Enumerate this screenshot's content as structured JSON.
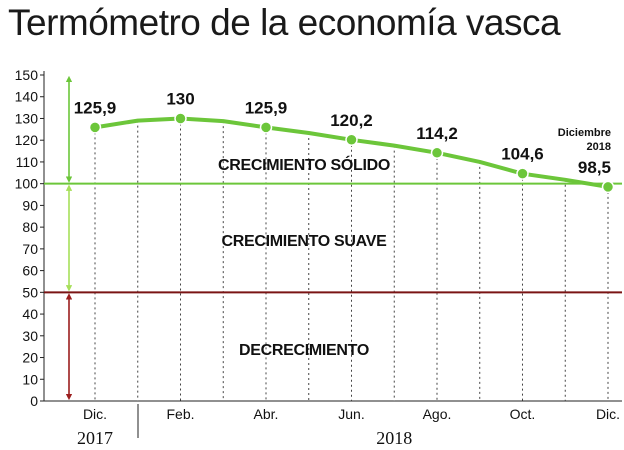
{
  "chart_data": {
    "type": "line",
    "title": "Termómetro de la economía vasca",
    "categories": [
      "Dic.",
      "Feb.",
      "Abr.",
      "Jun.",
      "Ago.",
      "Oct.",
      "Dic."
    ],
    "years": [
      {
        "label": "2017",
        "from": 0,
        "to": 0
      },
      {
        "label": "2018",
        "from": 1,
        "to": 6
      }
    ],
    "series": [
      {
        "values": [
          125.9,
          130,
          125.9,
          120.2,
          114.2,
          104.6,
          98.5
        ],
        "labels": [
          "125,9",
          "130",
          "125,9",
          "120,2",
          "114,2",
          "104,6",
          "98,5"
        ],
        "color": "#6cc63a"
      }
    ],
    "line_path": [
      {
        "x": 0,
        "y": 125.9
      },
      {
        "x": 0.5,
        "y": 129
      },
      {
        "x": 1,
        "y": 130
      },
      {
        "x": 1.5,
        "y": 128.8
      },
      {
        "x": 2,
        "y": 125.9
      },
      {
        "x": 2.5,
        "y": 123.3
      },
      {
        "x": 3,
        "y": 120.2
      },
      {
        "x": 3.5,
        "y": 117.5
      },
      {
        "x": 4,
        "y": 114.2
      },
      {
        "x": 4.5,
        "y": 110
      },
      {
        "x": 5,
        "y": 104.6
      },
      {
        "x": 5.5,
        "y": 101.8
      },
      {
        "x": 6,
        "y": 98.5
      }
    ],
    "ylim": [
      0,
      150
    ],
    "yticks": [
      0,
      10,
      20,
      30,
      40,
      50,
      60,
      70,
      80,
      90,
      100,
      110,
      120,
      130,
      140,
      150
    ],
    "reference_lines": [
      {
        "value": 100,
        "color": "#6cc63a"
      },
      {
        "value": 50,
        "color": "#7a1414"
      }
    ],
    "zones": [
      {
        "label": "CRECIMIENTO SÓLIDO",
        "from": 100,
        "to": 150,
        "label_at": 109,
        "arrow_color": "#6cc63a"
      },
      {
        "label": "CRECIMIENTO SUAVE",
        "from": 50,
        "to": 100,
        "label_at": 74,
        "arrow_color": "#a7df5a"
      },
      {
        "label": "DECRECIMIENTO",
        "from": 0,
        "to": 50,
        "label_at": 24,
        "arrow_color": "#9b1e1e"
      }
    ],
    "annotation": {
      "text_line1": "Diciembre",
      "text_line2": "2018"
    },
    "grid": "vertical dotted at each category"
  }
}
